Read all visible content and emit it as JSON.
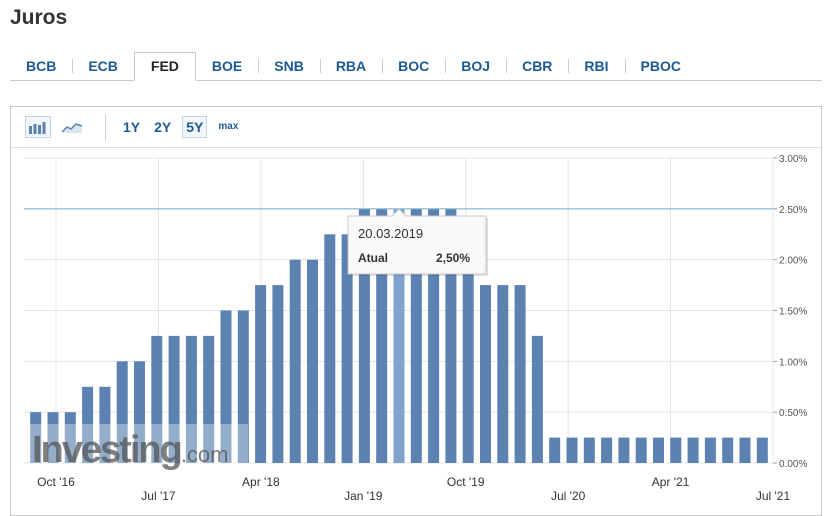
{
  "page": {
    "title": "Juros"
  },
  "tabs": [
    {
      "label": "BCB",
      "active": false
    },
    {
      "label": "ECB",
      "active": false
    },
    {
      "label": "FED",
      "active": true
    },
    {
      "label": "BOE",
      "active": false
    },
    {
      "label": "SNB",
      "active": false
    },
    {
      "label": "RBA",
      "active": false
    },
    {
      "label": "BOC",
      "active": false
    },
    {
      "label": "BOJ",
      "active": false
    },
    {
      "label": "CBR",
      "active": false
    },
    {
      "label": "RBI",
      "active": false
    },
    {
      "label": "PBOC",
      "active": false
    }
  ],
  "toolbar": {
    "chart_type_icons": [
      {
        "icon": "bar-chart-icon",
        "active": true
      },
      {
        "icon": "area-chart-icon",
        "active": false
      }
    ],
    "ranges": [
      {
        "label": "1Y",
        "active": false
      },
      {
        "label": "2Y",
        "active": false
      },
      {
        "label": "5Y",
        "active": true
      },
      {
        "label": "max",
        "active": false
      }
    ]
  },
  "watermark": {
    "main": "Investing",
    "suffix": ".com"
  },
  "tooltip": {
    "date": "20.03.2019",
    "label": "Atual",
    "value": "2,50%"
  },
  "colors": {
    "bar": "#5b82b0",
    "bar_highlight": "#7fa3cc",
    "reference_line": "#84b4cf",
    "grid": "#e4e4e4",
    "tab_text": "#1c5a93"
  },
  "chart_data": {
    "type": "bar",
    "y_axis_side": "right",
    "ylim": [
      0,
      3
    ],
    "y_ticks": [
      "0.00%",
      "0.50%",
      "1.00%",
      "1.50%",
      "2.00%",
      "2.50%",
      "3.00%"
    ],
    "x_tick_labels": [
      {
        "label": "Oct '16",
        "row": 1
      },
      {
        "label": "Jul '17",
        "row": 2
      },
      {
        "label": "Apr '18",
        "row": 1
      },
      {
        "label": "Jan '19",
        "row": 2
      },
      {
        "label": "Oct '19",
        "row": 1
      },
      {
        "label": "Jul '20",
        "row": 2
      },
      {
        "label": "Apr '21",
        "row": 1
      },
      {
        "label": "Jul '21",
        "row": 2
      }
    ],
    "current_value_line": 2.5,
    "highlight_index": 21,
    "values": [
      0.5,
      0.5,
      0.5,
      0.75,
      0.75,
      1.0,
      1.0,
      1.25,
      1.25,
      1.25,
      1.25,
      1.5,
      1.5,
      1.75,
      1.75,
      2.0,
      2.0,
      2.25,
      2.25,
      2.5,
      2.5,
      2.5,
      2.5,
      2.5,
      2.5,
      2.0,
      1.75,
      1.75,
      1.75,
      1.25,
      0.25,
      0.25,
      0.25,
      0.25,
      0.25,
      0.25,
      0.25,
      0.25,
      0.25,
      0.25,
      0.25,
      0.25,
      0.25
    ]
  }
}
